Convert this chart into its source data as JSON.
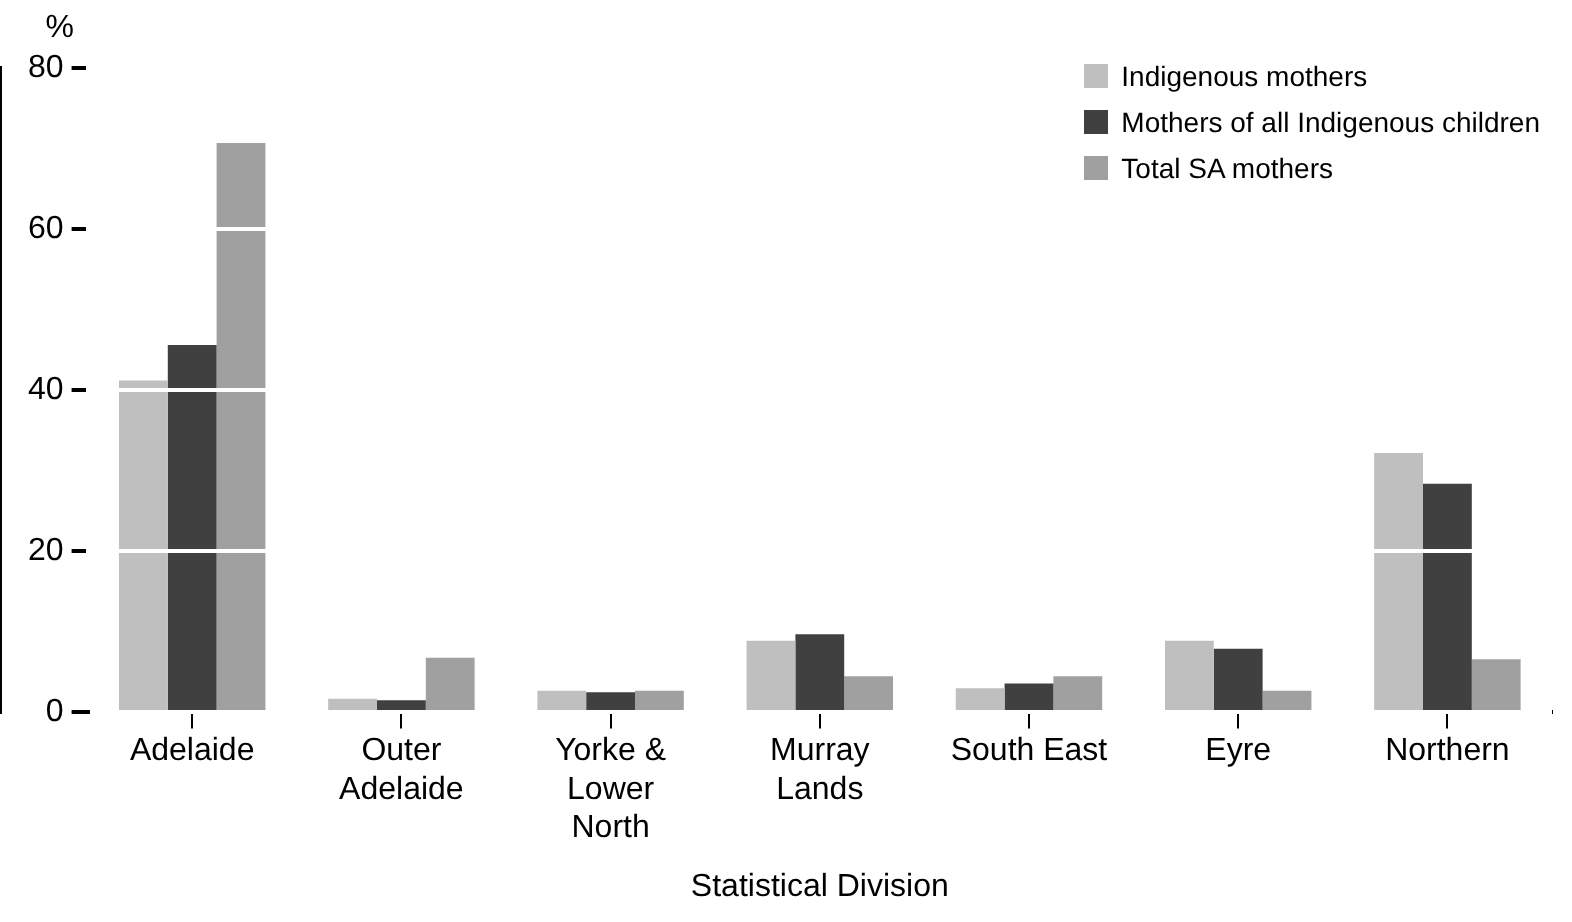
{
  "chart_data": {
    "type": "bar",
    "ylabel": "%",
    "xlabel": "Statistical Division",
    "categories": [
      "Adelaide",
      "Outer Adelaide",
      "Yorke & Lower North",
      "Murray Lands",
      "South East",
      "Eyre",
      "Northern"
    ],
    "series": [
      {
        "name": "Indigenous mothers",
        "color": "#bfbfbf",
        "values": [
          41.2,
          1.7,
          2.7,
          8.9,
          3.0,
          8.9,
          32.2
        ]
      },
      {
        "name": "Mothers of all Indigenous children",
        "color": "#404040",
        "values": [
          45.6,
          1.5,
          2.5,
          9.7,
          3.6,
          7.9,
          28.4
        ]
      },
      {
        "name": "Total SA mothers",
        "color": "#a0a0a0",
        "values": [
          70.7,
          6.8,
          2.7,
          4.5,
          4.5,
          2.7,
          6.6
        ]
      }
    ],
    "ylim": [
      0,
      80
    ],
    "yticks": [
      0,
      20,
      40,
      60,
      80
    ],
    "grid": "y",
    "legend": "top right"
  }
}
